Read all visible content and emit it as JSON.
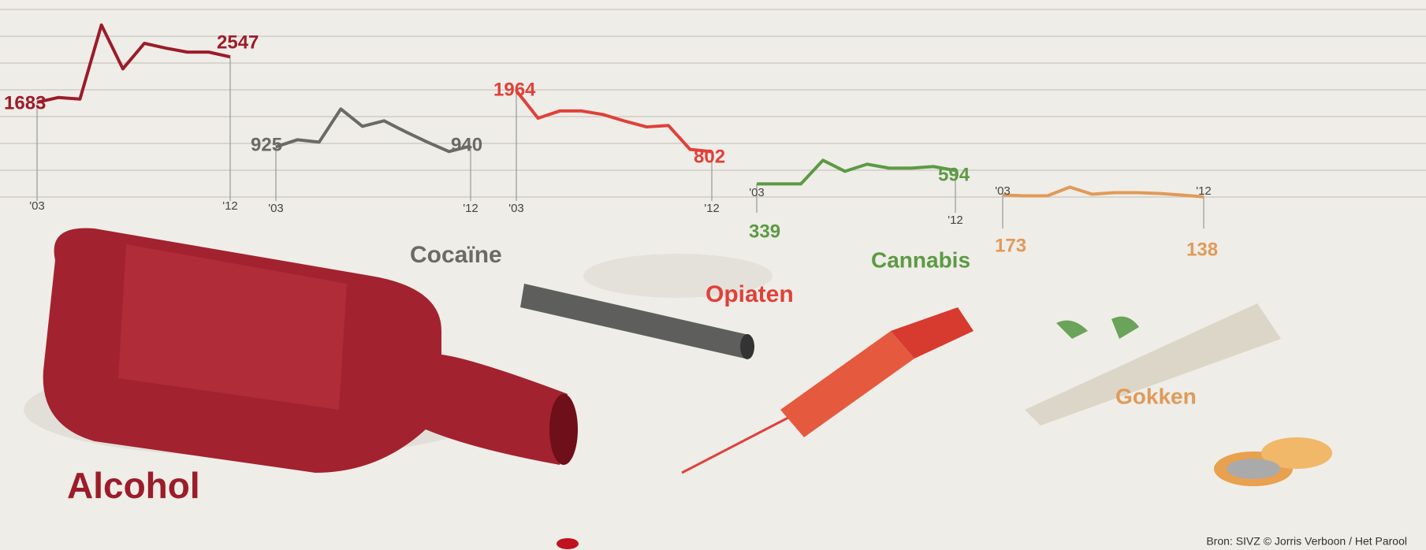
{
  "chart_data": [
    {
      "type": "line",
      "title": "Alcohol",
      "categories": [
        "'03",
        null,
        null,
        null,
        null,
        null,
        null,
        null,
        null,
        "'12"
      ],
      "color": "#9b1c2a",
      "values": [
        1683,
        1774,
        1744,
        3154,
        2320,
        2805,
        2714,
        2638,
        2638,
        2547
      ]
    },
    {
      "type": "line",
      "title": "Cocaïne",
      "categories": [
        "'03",
        null,
        null,
        null,
        null,
        null,
        null,
        null,
        null,
        "'12"
      ],
      "color": "#6a6a66",
      "values": [
        925,
        1060,
        1015,
        1645,
        1315,
        1420,
        1210,
        1015,
        835,
        940
      ]
    },
    {
      "type": "line",
      "title": "Opiaten",
      "categories": [
        "'03",
        null,
        null,
        null,
        null,
        null,
        null,
        null,
        null,
        "'12"
      ],
      "color": "#e0403a",
      "values": [
        1964,
        1440,
        1578,
        1578,
        1509,
        1384,
        1274,
        1302,
        846,
        802
      ]
    },
    {
      "type": "line",
      "title": "Cannabis",
      "categories": [
        "'03",
        null,
        null,
        null,
        null,
        null,
        null,
        null,
        null,
        "'12"
      ],
      "color": "#5c9a45",
      "values": [
        339,
        339,
        339,
        789,
        579,
        714,
        639,
        639,
        669,
        594
      ]
    },
    {
      "type": "line",
      "title": "Gokken",
      "categories": [
        "'03",
        null,
        null,
        null,
        null,
        null,
        null,
        null,
        null,
        "'12"
      ],
      "color": "#e09a5a",
      "values": [
        173,
        158,
        158,
        323,
        188,
        218,
        218,
        203,
        173,
        138
      ]
    }
  ],
  "source": "Bron: SIVZ © Jorris Verboon / Het Parool"
}
